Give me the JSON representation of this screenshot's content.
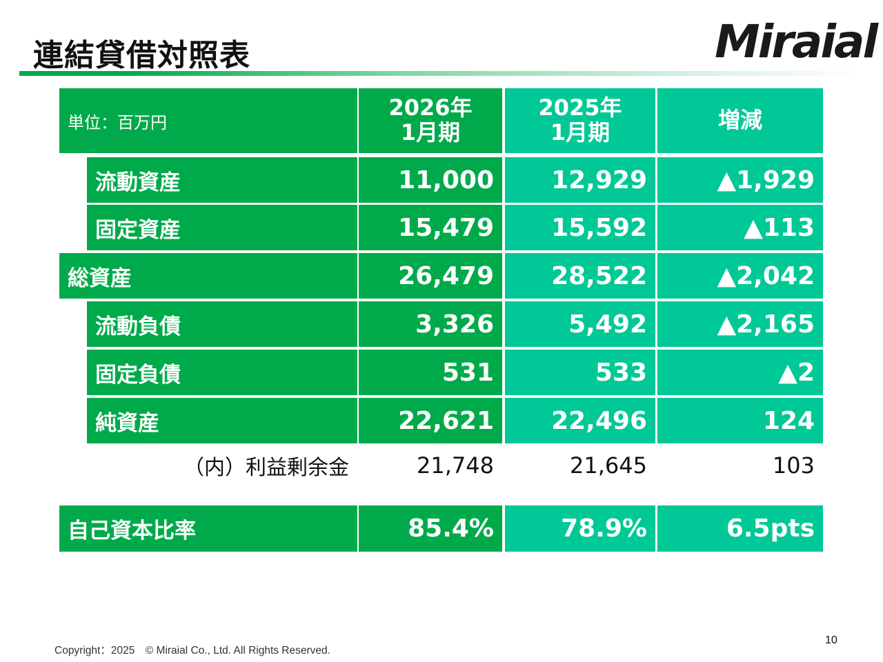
{
  "title": "連結貸借対照表",
  "logo": "Miraial",
  "header": {
    "unit": "単位：百万円",
    "col1": "2026年\n1月期",
    "col2": "2025年\n1月期",
    "col3": "増減"
  },
  "rows": [
    {
      "label": "流動資産",
      "v2026": "11,000",
      "v2025": "12,929",
      "diff": "▲1,929"
    },
    {
      "label": "固定資産",
      "v2026": "15,479",
      "v2025": "15,592",
      "diff": "▲113"
    },
    {
      "label": "総資産",
      "v2026": "26,479",
      "v2025": "28,522",
      "diff": "▲2,042"
    },
    {
      "label": "流動負債",
      "v2026": "3,326",
      "v2025": "5,492",
      "diff": "▲2,165"
    },
    {
      "label": "固定負債",
      "v2026": "531",
      "v2025": "533",
      "diff": "▲2"
    },
    {
      "label": "純資産",
      "v2026": "22,621",
      "v2025": "22,496",
      "diff": "124"
    }
  ],
  "retained": {
    "label": "（内）利益剰余金",
    "v2026": "21,748",
    "v2025": "21,645",
    "diff": "103"
  },
  "equity_ratio": {
    "label": "自己資本比率",
    "v2026": "85.4%",
    "v2025": "78.9%",
    "diff": "6.5pts"
  },
  "footer": {
    "copyright": "Copyright：2025　© Miraial Co., Ltd. All Rights Reserved.",
    "page": "10"
  },
  "colors": {
    "green": "#00aa4b",
    "teal": "#00c896"
  }
}
